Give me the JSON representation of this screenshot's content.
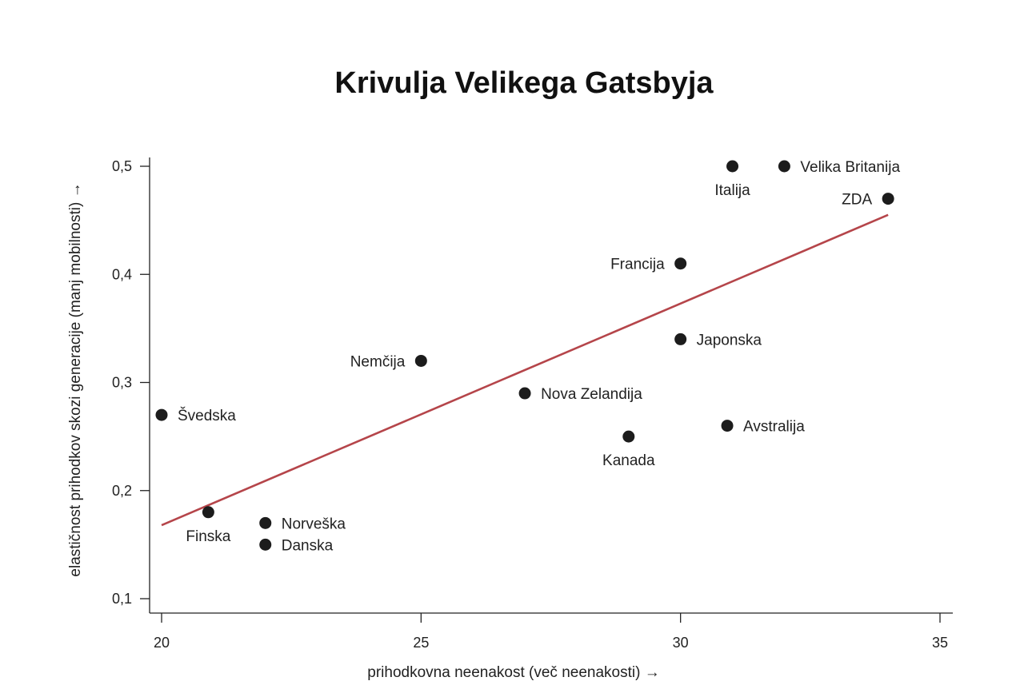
{
  "chart_data": {
    "type": "scatter",
    "title": "Krivulja Velikega Gatsbyja",
    "xlabel": "prihodkovna neenakost (več neenakosti) →",
    "ylabel": "elastičnost prihodkov skozi generacije (manj mobilnosti) →",
    "xlim": [
      20,
      35
    ],
    "ylim": [
      0.1,
      0.5
    ],
    "x_ticks": [
      {
        "value": 20,
        "label": "20"
      },
      {
        "value": 25,
        "label": "25"
      },
      {
        "value": 30,
        "label": "30"
      },
      {
        "value": 35,
        "label": "35"
      }
    ],
    "y_ticks": [
      {
        "value": 0.1,
        "label": "0,1"
      },
      {
        "value": 0.2,
        "label": "0,2"
      },
      {
        "value": 0.3,
        "label": "0,3"
      },
      {
        "value": 0.4,
        "label": "0,4"
      },
      {
        "value": 0.5,
        "label": "0,5"
      }
    ],
    "grid": false,
    "points": [
      {
        "label": "Švedska",
        "x": 20.0,
        "y": 0.27,
        "label_pos": "right"
      },
      {
        "label": "Finska",
        "x": 20.9,
        "y": 0.18,
        "label_pos": "below"
      },
      {
        "label": "Norveška",
        "x": 22.0,
        "y": 0.17,
        "label_pos": "right"
      },
      {
        "label": "Danska",
        "x": 22.0,
        "y": 0.15,
        "label_pos": "right"
      },
      {
        "label": "Nemčija",
        "x": 25.0,
        "y": 0.32,
        "label_pos": "left"
      },
      {
        "label": "Nova Zelandija",
        "x": 27.0,
        "y": 0.29,
        "label_pos": "right"
      },
      {
        "label": "Kanada",
        "x": 29.0,
        "y": 0.25,
        "label_pos": "below"
      },
      {
        "label": "Japonska",
        "x": 30.0,
        "y": 0.34,
        "label_pos": "right"
      },
      {
        "label": "Francija",
        "x": 30.0,
        "y": 0.41,
        "label_pos": "left"
      },
      {
        "label": "Avstralija",
        "x": 30.9,
        "y": 0.26,
        "label_pos": "right"
      },
      {
        "label": "Italija",
        "x": 31.0,
        "y": 0.5,
        "label_pos": "below"
      },
      {
        "label": "Velika Britanija",
        "x": 32.0,
        "y": 0.5,
        "label_pos": "right"
      },
      {
        "label": "ZDA",
        "x": 34.0,
        "y": 0.47,
        "label_pos": "left"
      }
    ],
    "trendline": {
      "x": [
        20.0,
        34.0
      ],
      "y": [
        0.168,
        0.455
      ],
      "color": "#b5454a"
    },
    "point_color": "#1c1c1c"
  }
}
